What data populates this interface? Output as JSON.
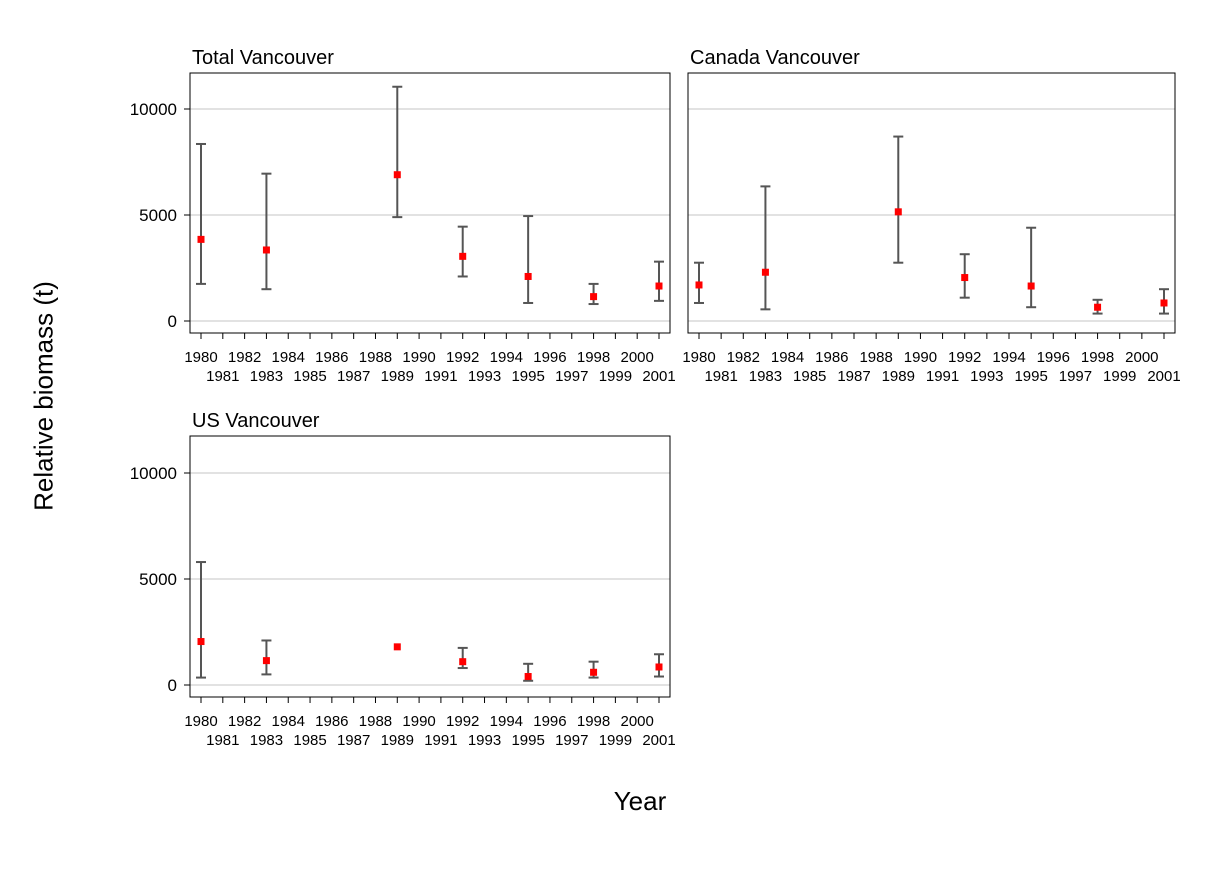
{
  "chart_data": {
    "type": "scatter",
    "xlabel": "Year",
    "ylabel": "Relative biomass (t)",
    "ylim": [
      0,
      12000
    ],
    "yticks": [
      0,
      5000,
      10000
    ],
    "xticks": [
      "1980",
      "1981",
      "1982",
      "1983",
      "1984",
      "1985",
      "1986",
      "1987",
      "1988",
      "1989",
      "1990",
      "1991",
      "1992",
      "1993",
      "1994",
      "1995",
      "1996",
      "1997",
      "1998",
      "1999",
      "2000",
      "2001"
    ],
    "grid": "horizontal",
    "point_color": "#ff0000",
    "errorbar_color": "#555555",
    "panels": [
      {
        "title": "Total Vancouver",
        "points": [
          {
            "year": 1980,
            "value": 3850,
            "low": 1750,
            "high": 8350
          },
          {
            "year": 1983,
            "value": 3350,
            "low": 1500,
            "high": 6950
          },
          {
            "year": 1989,
            "value": 6900,
            "low": 4900,
            "high": 11050
          },
          {
            "year": 1992,
            "value": 3050,
            "low": 2100,
            "high": 4450
          },
          {
            "year": 1995,
            "value": 2100,
            "low": 850,
            "high": 4950
          },
          {
            "year": 1998,
            "value": 1150,
            "low": 800,
            "high": 1750
          },
          {
            "year": 2001,
            "value": 1650,
            "low": 950,
            "high": 2800
          }
        ]
      },
      {
        "title": "Canada Vancouver",
        "points": [
          {
            "year": 1980,
            "value": 1700,
            "low": 850,
            "high": 2750
          },
          {
            "year": 1983,
            "value": 2300,
            "low": 550,
            "high": 6350
          },
          {
            "year": 1989,
            "value": 5150,
            "low": 2750,
            "high": 8700
          },
          {
            "year": 1992,
            "value": 2050,
            "low": 1100,
            "high": 3150
          },
          {
            "year": 1995,
            "value": 1650,
            "low": 650,
            "high": 4400
          },
          {
            "year": 1998,
            "value": 650,
            "low": 350,
            "high": 1000
          },
          {
            "year": 2001,
            "value": 850,
            "low": 350,
            "high": 1500
          }
        ]
      },
      {
        "title": "US Vancouver",
        "points": [
          {
            "year": 1980,
            "value": 2050,
            "low": 350,
            "high": 5800
          },
          {
            "year": 1983,
            "value": 1150,
            "low": 500,
            "high": 2100
          },
          {
            "year": 1989,
            "value": 1800,
            "low": null,
            "high": null
          },
          {
            "year": 1992,
            "value": 1100,
            "low": 800,
            "high": 1750
          },
          {
            "year": 1995,
            "value": 400,
            "low": 200,
            "high": 1000
          },
          {
            "year": 1998,
            "value": 600,
            "low": 350,
            "high": 1100
          },
          {
            "year": 2001,
            "value": 850,
            "low": 400,
            "high": 1450
          }
        ]
      }
    ]
  }
}
